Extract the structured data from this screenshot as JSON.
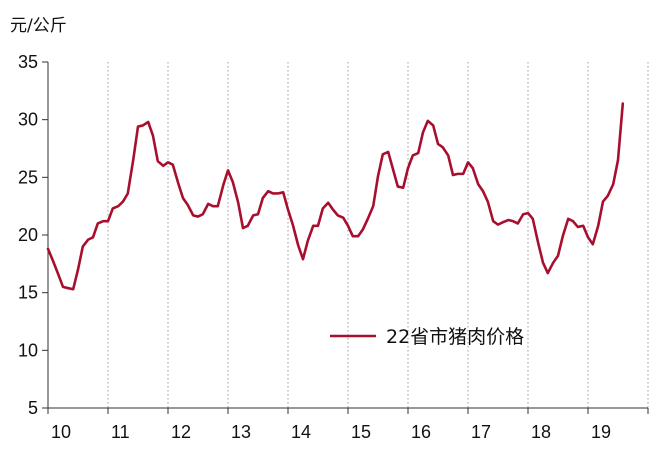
{
  "chart_data": {
    "type": "line",
    "title": "",
    "ylabel": "元/公斤",
    "xlabel": "",
    "ylim": [
      5,
      35
    ],
    "yticks": [
      5,
      10,
      15,
      20,
      25,
      30,
      35
    ],
    "xlim": [
      10,
      20
    ],
    "xticks": [
      10,
      11,
      12,
      13,
      14,
      15,
      16,
      17,
      18,
      19
    ],
    "grid": {
      "vertical": true,
      "horizontal": false,
      "style": "dotted"
    },
    "legend_position": "center-right",
    "series": [
      {
        "name": "22省市猪肉价格",
        "color": "#a80f2e",
        "points": [
          [
            10.0,
            18.8
          ],
          [
            10.08,
            17.8
          ],
          [
            10.17,
            16.6
          ],
          [
            10.25,
            15.5
          ],
          [
            10.33,
            15.4
          ],
          [
            10.42,
            15.3
          ],
          [
            10.5,
            17.0
          ],
          [
            10.58,
            19.0
          ],
          [
            10.67,
            19.6
          ],
          [
            10.75,
            19.8
          ],
          [
            10.83,
            21.0
          ],
          [
            10.92,
            21.2
          ],
          [
            11.0,
            21.2
          ],
          [
            11.08,
            22.3
          ],
          [
            11.17,
            22.5
          ],
          [
            11.25,
            22.9
          ],
          [
            11.33,
            23.6
          ],
          [
            11.42,
            26.5
          ],
          [
            11.5,
            29.4
          ],
          [
            11.58,
            29.5
          ],
          [
            11.67,
            29.8
          ],
          [
            11.75,
            28.6
          ],
          [
            11.83,
            26.4
          ],
          [
            11.92,
            26.0
          ],
          [
            12.0,
            26.3
          ],
          [
            12.08,
            26.1
          ],
          [
            12.17,
            24.5
          ],
          [
            12.25,
            23.2
          ],
          [
            12.33,
            22.6
          ],
          [
            12.42,
            21.7
          ],
          [
            12.5,
            21.6
          ],
          [
            12.58,
            21.8
          ],
          [
            12.67,
            22.7
          ],
          [
            12.75,
            22.5
          ],
          [
            12.83,
            22.5
          ],
          [
            12.92,
            24.3
          ],
          [
            13.0,
            25.6
          ],
          [
            13.08,
            24.6
          ],
          [
            13.17,
            22.8
          ],
          [
            13.25,
            20.6
          ],
          [
            13.33,
            20.8
          ],
          [
            13.42,
            21.7
          ],
          [
            13.5,
            21.8
          ],
          [
            13.58,
            23.2
          ],
          [
            13.67,
            23.8
          ],
          [
            13.75,
            23.6
          ],
          [
            13.83,
            23.6
          ],
          [
            13.92,
            23.7
          ],
          [
            14.0,
            22.2
          ],
          [
            14.08,
            20.9
          ],
          [
            14.17,
            19.1
          ],
          [
            14.25,
            17.9
          ],
          [
            14.33,
            19.5
          ],
          [
            14.42,
            20.8
          ],
          [
            14.5,
            20.8
          ],
          [
            14.58,
            22.3
          ],
          [
            14.67,
            22.8
          ],
          [
            14.75,
            22.2
          ],
          [
            14.83,
            21.7
          ],
          [
            14.92,
            21.5
          ],
          [
            15.0,
            20.8
          ],
          [
            15.08,
            19.9
          ],
          [
            15.17,
            19.9
          ],
          [
            15.25,
            20.5
          ],
          [
            15.33,
            21.4
          ],
          [
            15.42,
            22.5
          ],
          [
            15.5,
            25.1
          ],
          [
            15.58,
            27.0
          ],
          [
            15.67,
            27.2
          ],
          [
            15.75,
            25.7
          ],
          [
            15.83,
            24.2
          ],
          [
            15.92,
            24.1
          ],
          [
            16.0,
            25.8
          ],
          [
            16.08,
            26.9
          ],
          [
            16.17,
            27.1
          ],
          [
            16.25,
            28.9
          ],
          [
            16.33,
            29.9
          ],
          [
            16.42,
            29.5
          ],
          [
            16.5,
            27.9
          ],
          [
            16.58,
            27.6
          ],
          [
            16.67,
            26.9
          ],
          [
            16.75,
            25.2
          ],
          [
            16.83,
            25.3
          ],
          [
            16.92,
            25.3
          ],
          [
            17.0,
            26.3
          ],
          [
            17.08,
            25.8
          ],
          [
            17.17,
            24.4
          ],
          [
            17.25,
            23.8
          ],
          [
            17.33,
            22.9
          ],
          [
            17.42,
            21.2
          ],
          [
            17.5,
            20.9
          ],
          [
            17.58,
            21.1
          ],
          [
            17.67,
            21.3
          ],
          [
            17.75,
            21.2
          ],
          [
            17.83,
            21.0
          ],
          [
            17.92,
            21.8
          ],
          [
            18.0,
            21.9
          ],
          [
            18.08,
            21.4
          ],
          [
            18.17,
            19.3
          ],
          [
            18.25,
            17.6
          ],
          [
            18.33,
            16.7
          ],
          [
            18.42,
            17.6
          ],
          [
            18.5,
            18.2
          ],
          [
            18.58,
            19.9
          ],
          [
            18.67,
            21.4
          ],
          [
            18.75,
            21.2
          ],
          [
            18.83,
            20.7
          ],
          [
            18.92,
            20.8
          ],
          [
            19.0,
            19.8
          ],
          [
            19.08,
            19.2
          ],
          [
            19.17,
            20.8
          ],
          [
            19.25,
            22.9
          ],
          [
            19.33,
            23.4
          ],
          [
            19.42,
            24.4
          ],
          [
            19.5,
            26.5
          ],
          [
            19.58,
            31.4
          ]
        ]
      }
    ]
  }
}
